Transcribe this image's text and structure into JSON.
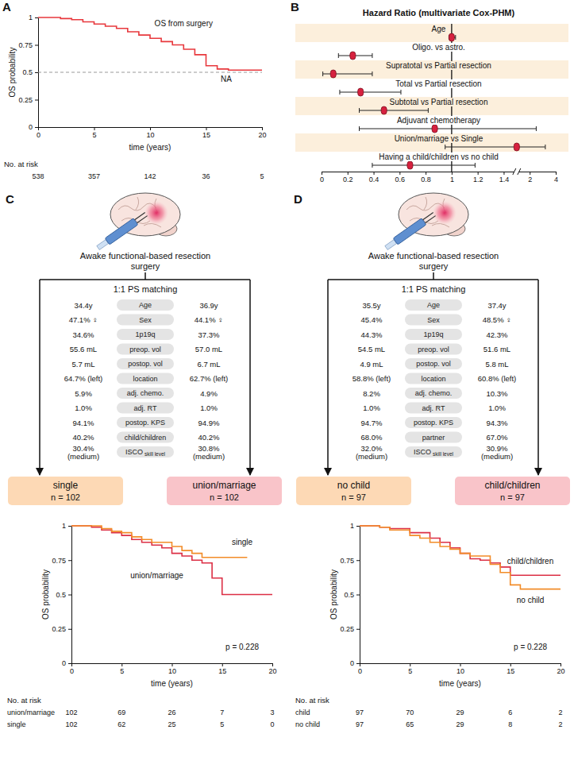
{
  "chart_data": [
    {
      "panel_label": "A",
      "type": "line",
      "line_style": "step",
      "x_label": "time (years)",
      "y_label": "OS probability",
      "xlim": [
        0,
        20
      ],
      "ylim": [
        0,
        1
      ],
      "xticks": [
        0,
        5,
        10,
        15,
        20
      ],
      "yticks": [
        0,
        0.25,
        0.5,
        0.75,
        1
      ],
      "hline": {
        "y": 0.5,
        "line_style": "dashed"
      },
      "series": [
        {
          "color": "#e8383d",
          "x": [
            0,
            1,
            2,
            3,
            4,
            5,
            6,
            7,
            8,
            9,
            10,
            11,
            12,
            13,
            14,
            15,
            16,
            17,
            18,
            20
          ],
          "values": [
            1,
            1,
            0.99,
            0.98,
            0.96,
            0.94,
            0.92,
            0.9,
            0.87,
            0.84,
            0.81,
            0.78,
            0.75,
            0.71,
            0.66,
            0.56,
            0.53,
            0.52,
            0.52,
            0.52
          ]
        }
      ],
      "annotations": [
        {
          "text": "OS from surgery",
          "x": 13,
          "y": 0.92
        },
        {
          "text": "NA",
          "x": 16.8,
          "y": 0.41
        }
      ],
      "risk_table": {
        "title": "No. at risk",
        "x": [
          0,
          5,
          10,
          15,
          20
        ],
        "rows": [
          {
            "values": [
              538,
              357,
              142,
              36,
              5
            ]
          }
        ]
      }
    },
    {
      "panel_label": "B",
      "type": "forest",
      "title": "Hazard Ratio (multivariate Cox-PHM)",
      "categories": [
        "Age",
        "Oligo. vs astro.",
        "Supratotal vs Partial resection",
        "Total vs Partial resection",
        "Subtotal vs Partial resection",
        "Adjuvant chemotherapy",
        "Union/marriage vs Single",
        "Having a child/children vs no child"
      ],
      "values": [
        1.0,
        0.24,
        0.09,
        0.3,
        0.48,
        0.87,
        1.7,
        0.68
      ],
      "ci_low": [
        0.98,
        0.13,
        0.01,
        0.14,
        0.29,
        0.29,
        0.95,
        0.39
      ],
      "ci_high": [
        1.03,
        0.39,
        0.39,
        0.61,
        0.82,
        2.5,
        3.2,
        1.18
      ],
      "color": "#d6213f",
      "vline": 1,
      "xlim": [
        0,
        4
      ],
      "xticks": [
        0,
        0.2,
        0.4,
        0.6,
        0.8,
        1,
        1.2,
        1.4,
        2,
        4
      ]
    },
    {
      "type": "line",
      "line_style": "step",
      "x_label": "time (years)",
      "y_label": "OS probability",
      "xlim": [
        0,
        20
      ],
      "ylim": [
        0,
        1
      ],
      "xticks": [
        0,
        5,
        10,
        15,
        20
      ],
      "yticks": [
        0,
        0.25,
        0.5,
        0.75,
        1
      ],
      "series": [
        {
          "name": "union/marriage",
          "color": "#dc2f45",
          "x": [
            0,
            2,
            3,
            4,
            5,
            6,
            7,
            8,
            9,
            10,
            11,
            12,
            13,
            14,
            15,
            20
          ],
          "values": [
            1,
            0.99,
            0.97,
            0.95,
            0.93,
            0.9,
            0.88,
            0.86,
            0.84,
            0.8,
            0.78,
            0.75,
            0.73,
            0.62,
            0.5,
            0.5
          ]
        },
        {
          "name": "single",
          "color": "#f28c28",
          "x": [
            0,
            2,
            3,
            4,
            5,
            6,
            7,
            8,
            10,
            11,
            12,
            13,
            17.5
          ],
          "values": [
            1,
            1,
            0.98,
            0.96,
            0.95,
            0.92,
            0.9,
            0.88,
            0.85,
            0.82,
            0.8,
            0.77,
            0.77
          ]
        }
      ],
      "annotations": [
        {
          "text": "single",
          "x": 17,
          "y": 0.86
        },
        {
          "text": "union/marriage",
          "x": 8.5,
          "y": 0.62
        },
        {
          "text": "p = 0.228",
          "x": 17,
          "y": 0.1
        }
      ],
      "risk_table": {
        "title": "No. at risk",
        "x": [
          0,
          5,
          10,
          15,
          20
        ],
        "rows": [
          {
            "name": "union/marriage",
            "values": [
              102,
              69,
              26,
              7,
              3
            ]
          },
          {
            "name": "single",
            "values": [
              102,
              62,
              25,
              5,
              0
            ]
          }
        ]
      }
    },
    {
      "type": "line",
      "line_style": "step",
      "x_label": "time (years)",
      "y_label": "OS probability",
      "xlim": [
        0,
        20
      ],
      "ylim": [
        0,
        1
      ],
      "xticks": [
        0,
        5,
        10,
        15,
        20
      ],
      "yticks": [
        0,
        0.25,
        0.5,
        0.75,
        1
      ],
      "series": [
        {
          "name": "child/children",
          "color": "#dc2f45",
          "x": [
            0,
            2,
            3,
            5,
            7,
            8,
            9,
            10,
            11,
            12,
            13,
            14,
            15,
            20
          ],
          "values": [
            1,
            0.99,
            0.98,
            0.95,
            0.91,
            0.88,
            0.84,
            0.8,
            0.76,
            0.75,
            0.73,
            0.7,
            0.64,
            0.64
          ]
        },
        {
          "name": "no child",
          "color": "#f28c28",
          "x": [
            0,
            2,
            3,
            5,
            6,
            7,
            8,
            9,
            10,
            11,
            13,
            14,
            15,
            16,
            20
          ],
          "values": [
            1,
            0.99,
            0.97,
            0.93,
            0.91,
            0.88,
            0.85,
            0.83,
            0.8,
            0.78,
            0.72,
            0.66,
            0.57,
            0.54,
            0.54
          ]
        }
      ],
      "annotations": [
        {
          "text": "child/children",
          "x": 17,
          "y": 0.72
        },
        {
          "text": "no child",
          "x": 17,
          "y": 0.44
        },
        {
          "text": "p = 0.228",
          "x": 17,
          "y": 0.1
        }
      ],
      "risk_table": {
        "title": "No. at risk",
        "x": [
          0,
          5,
          10,
          15,
          20
        ],
        "rows": [
          {
            "name": "child",
            "values": [
              97,
              70,
              29,
              6,
              2
            ]
          },
          {
            "name": "no child",
            "values": [
              97,
              65,
              29,
              8,
              2
            ]
          }
        ]
      }
    }
  ],
  "diagrams": [
    {
      "panel_label": "C",
      "caption": "Awake functional-based resection surgery",
      "method": "1:1 PS matching",
      "rows": [
        {
          "label": "Age",
          "left": [
            "34.4y"
          ],
          "right": [
            "36.9y"
          ]
        },
        {
          "label": "Sex",
          "left": [
            "47.1% ♀"
          ],
          "right": [
            "44.1% ♀"
          ]
        },
        {
          "label": "1p19q",
          "left": [
            "34.6%"
          ],
          "right": [
            "37.3%"
          ]
        },
        {
          "label": "preop. vol",
          "left": [
            "55.6 mL"
          ],
          "right": [
            "57.0 mL"
          ]
        },
        {
          "label": "postop. vol",
          "left": [
            "5.7 mL"
          ],
          "right": [
            "6.7 mL"
          ]
        },
        {
          "label": "location",
          "left": [
            "64.7% (left)"
          ],
          "right": [
            "62.7% (left)"
          ]
        },
        {
          "label": "adj. chemo.",
          "left": [
            "5.9%"
          ],
          "right": [
            "4.9%"
          ]
        },
        {
          "label": "adj. RT",
          "left": [
            "1.0%"
          ],
          "right": [
            "1.0%"
          ]
        },
        {
          "label": "postop. KPS",
          "left": [
            "94.1%"
          ],
          "right": [
            "94.9%"
          ]
        },
        {
          "label": "child/children",
          "left": [
            "40.2%"
          ],
          "right": [
            "40.2%"
          ]
        },
        {
          "label": "ISCO",
          "sublabel": "skill level",
          "left": [
            "30.4%",
            "(medium)"
          ],
          "right": [
            "30.8%",
            "(medium)"
          ]
        }
      ],
      "groups": [
        {
          "name": "single",
          "n_label": "n = 102",
          "color": "#fdd9b5"
        },
        {
          "name": "union/marriage",
          "n_label": "n = 102",
          "color": "#f9c4c9"
        }
      ]
    },
    {
      "panel_label": "D",
      "caption": "Awake functional-based resection surgery",
      "method": "1:1 PS matching",
      "rows": [
        {
          "label": "Age",
          "left": [
            "35.5y"
          ],
          "right": [
            "37.4y"
          ]
        },
        {
          "label": "Sex",
          "left": [
            "45.4%"
          ],
          "right": [
            "48.5% ♀"
          ]
        },
        {
          "label": "1p19q",
          "left": [
            "44.3%"
          ],
          "right": [
            "42.3%"
          ]
        },
        {
          "label": "preop. vol",
          "left": [
            "54.5 mL"
          ],
          "right": [
            "51.6 mL"
          ]
        },
        {
          "label": "postop. vol",
          "left": [
            "4.9 mL"
          ],
          "right": [
            "5.8 mL"
          ]
        },
        {
          "label": "location",
          "left": [
            "58.8% (left)"
          ],
          "right": [
            "60.8% (left)"
          ]
        },
        {
          "label": "adj. chemo.",
          "left": [
            "8.2%"
          ],
          "right": [
            "10.3%"
          ]
        },
        {
          "label": "adj. RT",
          "left": [
            "1.0%"
          ],
          "right": [
            "1.0%"
          ]
        },
        {
          "label": "postop. KPS",
          "left": [
            "94.7%"
          ],
          "right": [
            "94.3%"
          ]
        },
        {
          "label": "partner",
          "left": [
            "68.0%"
          ],
          "right": [
            "67.0%"
          ]
        },
        {
          "label": "ISCO",
          "sublabel": "skill level",
          "left": [
            "32.0%",
            "(medium)"
          ],
          "right": [
            "30.9%",
            "(medium)"
          ]
        }
      ],
      "groups": [
        {
          "name": "no child",
          "n_label": "n = 97",
          "color": "#fdd9b5"
        },
        {
          "name": "child/children",
          "n_label": "n = 97",
          "color": "#f9c4c9"
        }
      ]
    }
  ]
}
